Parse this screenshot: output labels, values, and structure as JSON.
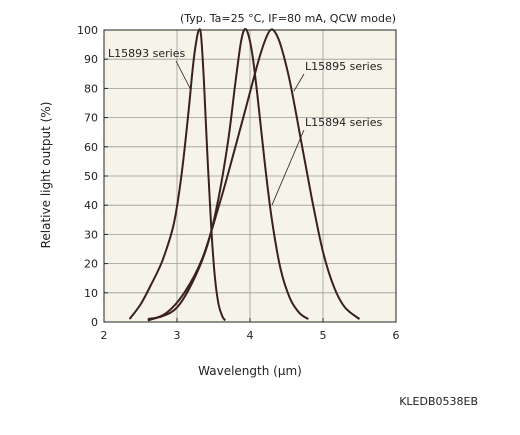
{
  "condition_text": "(Typ. Ta=25 °C, IF=80 mA, QCW mode)",
  "figure_code": "KLEDB0538EB",
  "chart_data": {
    "type": "line",
    "xlabel": "Wavelength (μm)",
    "ylabel": "Relative light output (%)",
    "xlim": [
      2,
      6
    ],
    "ylim": [
      0,
      100
    ],
    "xticks": [
      "2",
      "3",
      "4",
      "5",
      "6"
    ],
    "yticks": [
      "0",
      "10",
      "20",
      "30",
      "40",
      "50",
      "60",
      "70",
      "80",
      "90",
      "100"
    ],
    "grid": true,
    "colors": {
      "curve": "#3a2020",
      "grid": "#9a9a9a",
      "bg": "#f6f4e9"
    },
    "series": [
      {
        "name": "L15893 series",
        "x": [
          2.35,
          2.5,
          2.65,
          2.8,
          2.95,
          3.05,
          3.15,
          3.22,
          3.27,
          3.3,
          3.33,
          3.37,
          3.42,
          3.47,
          3.52,
          3.57,
          3.62,
          3.66
        ],
        "y": [
          1,
          6,
          13,
          21,
          33,
          48,
          70,
          88,
          97,
          100,
          98,
          82,
          55,
          32,
          15,
          6,
          2,
          0.5
        ]
      },
      {
        "name": "L15894 series",
        "x": [
          2.6,
          2.8,
          3.0,
          3.2,
          3.4,
          3.55,
          3.7,
          3.8,
          3.87,
          3.92,
          3.97,
          4.03,
          4.1,
          4.2,
          4.3,
          4.42,
          4.55,
          4.68,
          4.8
        ],
        "y": [
          1,
          2,
          5,
          13,
          25,
          40,
          62,
          82,
          95,
          100,
          99,
          92,
          78,
          55,
          35,
          18,
          8,
          3,
          1
        ]
      },
      {
        "name": "L15895 series",
        "x": [
          2.6,
          2.85,
          3.1,
          3.35,
          3.6,
          3.8,
          3.95,
          4.1,
          4.2,
          4.28,
          4.35,
          4.43,
          4.55,
          4.7,
          4.85,
          5.0,
          5.15,
          5.3,
          5.5
        ],
        "y": [
          0.5,
          3,
          10,
          22,
          42,
          60,
          74,
          88,
          96,
          100,
          99,
          94,
          82,
          62,
          42,
          24,
          12,
          5,
          1
        ]
      }
    ]
  }
}
